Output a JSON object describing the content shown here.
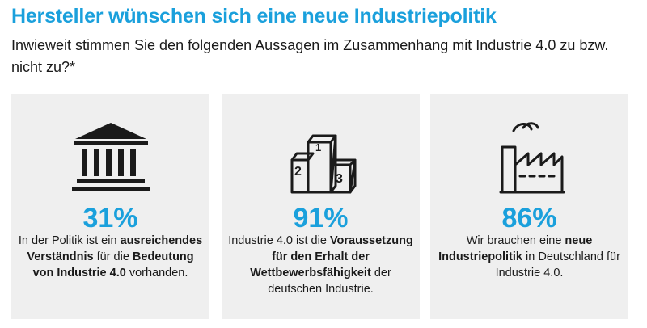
{
  "title": "Hersteller wünschen sich eine neue Industriepolitik",
  "subtitle": "Inwieweit stimmen Sie den folgenden Aussagen im Zusammenhang mit Industrie 4.0 zu bzw. nicht zu?*",
  "colors": {
    "accent": "#1aa0dc",
    "card_bg": "#efefef",
    "text": "#1a1a1a"
  },
  "chart_data": {
    "type": "table",
    "title": "Hersteller wünschen sich eine neue Industriepolitik",
    "unit": "%",
    "items": [
      {
        "icon": "government-building-icon",
        "value": 31,
        "label": "31%",
        "desc": [
          {
            "t": "In der Politik ist ein ",
            "b": false
          },
          {
            "t": "ausreichendes Verständnis",
            "b": true
          },
          {
            "t": " für die ",
            "b": false
          },
          {
            "t": "Bedeutung von Industrie 4.0",
            "b": true
          },
          {
            "t": " vorhanden.",
            "b": false
          }
        ]
      },
      {
        "icon": "podium-icon",
        "podium_labels": [
          "1",
          "2",
          "3"
        ],
        "value": 91,
        "label": "91%",
        "desc": [
          {
            "t": "Industrie 4.0 ist die ",
            "b": false
          },
          {
            "t": "Voraussetzung für den Erhalt der Wettbewerbsfähigkeit",
            "b": true
          },
          {
            "t": " der deutschen Industrie.",
            "b": false
          }
        ]
      },
      {
        "icon": "factory-icon",
        "value": 86,
        "label": "86%",
        "desc": [
          {
            "t": "Wir brauchen eine ",
            "b": false
          },
          {
            "t": "neue Industriepolitik",
            "b": true
          },
          {
            "t": " in Deutschland für Industrie 4.0.",
            "b": false
          }
        ]
      }
    ]
  }
}
